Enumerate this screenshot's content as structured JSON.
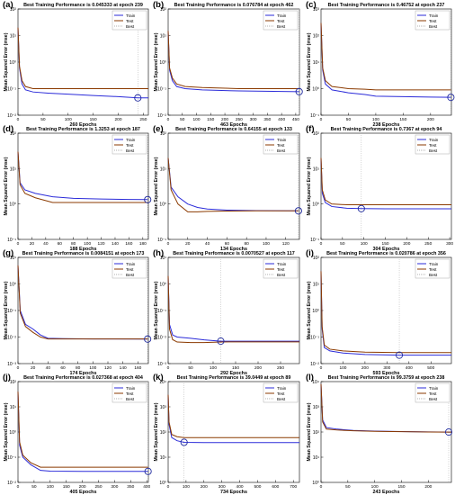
{
  "colors": {
    "train": "#2b2bd9",
    "test": "#8b3a00",
    "best": "#b0b0b0",
    "marker": "#1f2a9e",
    "axis": "#000000"
  },
  "legend_labels": [
    "Train",
    "Test",
    "Best"
  ],
  "ylabel": "Mean Squared Error  (mse)",
  "chart_data": [
    {
      "type": "line",
      "panel_label": "(a)",
      "title": "Best Training Performance is 0.045333 at epoch 239",
      "xlabel": "260 Epochs",
      "best_epoch": 239,
      "xlim": [
        0,
        260
      ],
      "xticks": [
        0,
        50,
        100,
        150,
        200,
        250
      ],
      "ylog": true,
      "ylim_exp": [
        -2,
        2
      ],
      "legend": "top-right",
      "series": [
        {
          "name": "Train",
          "x": [
            0,
            3,
            8,
            15,
            30,
            60,
            100,
            150,
            200,
            239,
            260
          ],
          "y": [
            20,
            0.6,
            0.15,
            0.09,
            0.075,
            0.068,
            0.062,
            0.055,
            0.05,
            0.045,
            0.045
          ]
        },
        {
          "name": "Test",
          "x": [
            0,
            3,
            8,
            15,
            30,
            60,
            100,
            150,
            200,
            239,
            260
          ],
          "y": [
            20,
            0.7,
            0.2,
            0.12,
            0.1,
            0.1,
            0.1,
            0.1,
            0.1,
            0.1,
            0.1
          ]
        }
      ]
    },
    {
      "type": "line",
      "panel_label": "(b)",
      "title": "Best Training Performance is 0.076784 at epoch 462",
      "xlabel": "463 Epochs",
      "best_epoch": 462,
      "xlim": [
        0,
        463
      ],
      "xticks": [
        0,
        50,
        100,
        150,
        200,
        250,
        300,
        350,
        400,
        450
      ],
      "ylog": true,
      "ylim_exp": [
        -2,
        2
      ],
      "legend": "top-right",
      "series": [
        {
          "name": "Train",
          "x": [
            0,
            5,
            15,
            30,
            60,
            120,
            250,
            400,
            462
          ],
          "y": [
            15,
            0.5,
            0.2,
            0.12,
            0.1,
            0.09,
            0.082,
            0.078,
            0.077
          ]
        },
        {
          "name": "Test",
          "x": [
            0,
            5,
            15,
            30,
            60,
            120,
            250,
            400,
            462
          ],
          "y": [
            15,
            0.6,
            0.25,
            0.15,
            0.12,
            0.11,
            0.1,
            0.1,
            0.1
          ]
        }
      ]
    },
    {
      "type": "line",
      "panel_label": "(c)",
      "title": "Best Training Performance is 0.46752 at epoch 237",
      "xlabel": "238 Epochs",
      "best_epoch": 237,
      "xlim": [
        0,
        238
      ],
      "xticks": [
        0,
        50,
        100,
        150,
        200
      ],
      "ylog": true,
      "ylim_exp": [
        -1,
        3
      ],
      "legend": "top-right",
      "series": [
        {
          "name": "Train",
          "x": [
            0,
            3,
            8,
            20,
            50,
            80,
            100,
            150,
            200,
            237
          ],
          "y": [
            300,
            5,
            1.5,
            0.9,
            0.7,
            0.6,
            0.52,
            0.5,
            0.48,
            0.47
          ]
        },
        {
          "name": "Test",
          "x": [
            0,
            3,
            8,
            20,
            50,
            80,
            100,
            150,
            200,
            237
          ],
          "y": [
            300,
            6,
            2,
            1.2,
            1,
            0.95,
            0.9,
            0.9,
            0.9,
            0.9
          ]
        }
      ]
    },
    {
      "type": "line",
      "panel_label": "(d)",
      "title": "Best Training Performance is 1.3253 at epoch 187",
      "xlabel": "188 Epochs",
      "best_epoch": 187,
      "xlim": [
        0,
        188
      ],
      "xticks": [
        0,
        20,
        40,
        60,
        80,
        100,
        120,
        140,
        160,
        180
      ],
      "ylog": true,
      "ylim_exp": [
        -1,
        2
      ],
      "legend": "top-right",
      "series": [
        {
          "name": "Train",
          "x": [
            0,
            3,
            10,
            25,
            50,
            80,
            120,
            160,
            187
          ],
          "y": [
            30,
            4,
            2.5,
            2,
            1.6,
            1.45,
            1.38,
            1.34,
            1.33
          ]
        },
        {
          "name": "Test",
          "x": [
            0,
            3,
            10,
            25,
            50,
            80,
            120,
            160,
            187
          ],
          "y": [
            30,
            3.5,
            2,
            1.5,
            1.1,
            1.1,
            1.1,
            1.1,
            1.1
          ]
        }
      ]
    },
    {
      "type": "line",
      "panel_label": "(e)",
      "title": "Best Training Performance is 0.64155 at epoch 133",
      "xlabel": "134 Epochs",
      "best_epoch": 133,
      "xlim": [
        0,
        134
      ],
      "xticks": [
        0,
        20,
        40,
        60,
        80,
        100,
        120
      ],
      "ylog": true,
      "ylim_exp": [
        -1,
        2
      ],
      "legend": "top-right",
      "series": [
        {
          "name": "Train",
          "x": [
            0,
            3,
            10,
            20,
            30,
            40,
            60,
            90,
            133
          ],
          "y": [
            20,
            3,
            1.6,
            1,
            0.8,
            0.72,
            0.67,
            0.65,
            0.64
          ]
        },
        {
          "name": "Test",
          "x": [
            0,
            3,
            10,
            20,
            30,
            40,
            60,
            90,
            133
          ],
          "y": [
            20,
            2.5,
            1,
            0.6,
            0.6,
            0.62,
            0.63,
            0.64,
            0.64
          ]
        }
      ]
    },
    {
      "type": "line",
      "panel_label": "(f)",
      "title": "Best Training Performance is 0.7367 at epoch 94",
      "xlabel": "304 Epochs",
      "best_epoch": 94,
      "xlim": [
        0,
        304
      ],
      "xticks": [
        0,
        50,
        100,
        150,
        200,
        250,
        300
      ],
      "ylog": true,
      "ylim_exp": [
        -1,
        2
      ],
      "legend": "top-right",
      "series": [
        {
          "name": "Train",
          "x": [
            0,
            3,
            10,
            25,
            60,
            94,
            150,
            200,
            250,
            304
          ],
          "y": [
            20,
            2,
            1.1,
            0.85,
            0.76,
            0.74,
            0.73,
            0.73,
            0.73,
            0.73
          ]
        },
        {
          "name": "Test",
          "x": [
            0,
            3,
            10,
            25,
            60,
            94,
            150,
            200,
            250,
            304
          ],
          "y": [
            20,
            2.5,
            1.3,
            1,
            0.95,
            0.95,
            0.95,
            0.95,
            0.95,
            0.95
          ]
        }
      ]
    },
    {
      "type": "line",
      "panel_label": "(g)",
      "title": "Best Training Performance is 0.0084151 at epoch 173",
      "xlabel": "174 Epochs",
      "best_epoch": 173,
      "xlim": [
        0,
        174
      ],
      "xticks": [
        0,
        20,
        40,
        60,
        80,
        100,
        120,
        140,
        160
      ],
      "ylog": true,
      "ylim_exp": [
        -3,
        1
      ],
      "legend": "top-right",
      "series": [
        {
          "name": "Train",
          "x": [
            0,
            3,
            10,
            20,
            30,
            40,
            60,
            100,
            173
          ],
          "y": [
            5,
            0.1,
            0.03,
            0.02,
            0.012,
            0.009,
            0.0087,
            0.0085,
            0.0084
          ]
        },
        {
          "name": "Test",
          "x": [
            0,
            3,
            10,
            20,
            30,
            40,
            60,
            100,
            173
          ],
          "y": [
            5,
            0.08,
            0.025,
            0.015,
            0.01,
            0.0085,
            0.0085,
            0.0085,
            0.0085
          ]
        }
      ]
    },
    {
      "type": "line",
      "panel_label": "(h)",
      "title": "Best Training Performance is 0.0070527 at epoch 117",
      "xlabel": "292 Epochs",
      "best_epoch": 117,
      "xlim": [
        0,
        292
      ],
      "xticks": [
        0,
        50,
        100,
        150,
        200,
        250
      ],
      "ylog": true,
      "ylim_exp": [
        -3,
        1
      ],
      "legend": "top-right",
      "series": [
        {
          "name": "Train",
          "x": [
            0,
            3,
            10,
            20,
            50,
            80,
            117,
            150,
            200,
            292
          ],
          "y": [
            2,
            0.03,
            0.012,
            0.01,
            0.009,
            0.0078,
            0.007,
            0.007,
            0.007,
            0.007
          ]
        },
        {
          "name": "Test",
          "x": [
            0,
            3,
            10,
            20,
            50,
            80,
            117,
            150,
            200,
            292
          ],
          "y": [
            2,
            0.02,
            0.008,
            0.0065,
            0.0062,
            0.0062,
            0.0065,
            0.0066,
            0.0066,
            0.0066
          ]
        }
      ]
    },
    {
      "type": "line",
      "panel_label": "(i)",
      "title": "Best Training Performance is 0.020786 at epoch 356",
      "xlabel": "593 Epochs",
      "best_epoch": 356,
      "xlim": [
        0,
        593
      ],
      "xticks": [
        0,
        100,
        200,
        300,
        400,
        500
      ],
      "ylog": true,
      "ylim_exp": [
        -2,
        2
      ],
      "legend": "top-right",
      "series": [
        {
          "name": "Train",
          "x": [
            0,
            5,
            15,
            40,
            100,
            200,
            356,
            450,
            593
          ],
          "y": [
            30,
            0.2,
            0.04,
            0.03,
            0.025,
            0.022,
            0.0208,
            0.0208,
            0.0208
          ]
        },
        {
          "name": "Test",
          "x": [
            0,
            5,
            15,
            40,
            100,
            200,
            356,
            450,
            593
          ],
          "y": [
            30,
            0.25,
            0.05,
            0.035,
            0.03,
            0.027,
            0.026,
            0.026,
            0.026
          ]
        }
      ]
    },
    {
      "type": "line",
      "panel_label": "(j)",
      "title": "Best Training Performance is 0.027368 at epoch 404",
      "xlabel": "405 Epochs",
      "best_epoch": 404,
      "xlim": [
        0,
        405
      ],
      "xticks": [
        0,
        50,
        100,
        150,
        200,
        250,
        300,
        350,
        400
      ],
      "ylog": true,
      "ylim_exp": [
        -2,
        2
      ],
      "legend": "top-right",
      "series": [
        {
          "name": "Train",
          "x": [
            0,
            5,
            15,
            40,
            70,
            100,
            200,
            300,
            404
          ],
          "y": [
            40,
            0.3,
            0.1,
            0.05,
            0.03,
            0.028,
            0.0275,
            0.0274,
            0.0274
          ]
        },
        {
          "name": "Test",
          "x": [
            0,
            5,
            15,
            40,
            70,
            100,
            200,
            300,
            404
          ],
          "y": [
            40,
            0.4,
            0.12,
            0.06,
            0.04,
            0.04,
            0.04,
            0.04,
            0.04
          ]
        }
      ]
    },
    {
      "type": "line",
      "panel_label": "(k)",
      "title": "Best Training Performance is 39.0449 at epoch 89",
      "xlabel": "734 Epochs",
      "best_epoch": 89,
      "xlim": [
        0,
        734
      ],
      "xticks": [
        0,
        100,
        200,
        300,
        400,
        500,
        600,
        700
      ],
      "ylog": true,
      "ylim_exp": [
        0,
        4
      ],
      "legend": "top-right",
      "series": [
        {
          "name": "Train",
          "x": [
            0,
            5,
            20,
            50,
            89,
            200,
            400,
            600,
            734
          ],
          "y": [
            3000,
            200,
            60,
            45,
            39,
            38,
            38,
            38,
            38
          ]
        },
        {
          "name": "Test",
          "x": [
            0,
            5,
            20,
            50,
            89,
            200,
            400,
            600,
            734
          ],
          "y": [
            3000,
            250,
            80,
            65,
            60,
            60,
            60,
            60,
            60
          ]
        }
      ]
    },
    {
      "type": "line",
      "panel_label": "(l)",
      "title": "Best Training Performance is 99.3759 at epoch 238",
      "xlabel": "243 Epochs",
      "best_epoch": 238,
      "xlim": [
        0,
        243
      ],
      "xticks": [
        0,
        50,
        100,
        150,
        200
      ],
      "ylog": true,
      "ylim_exp": [
        0,
        4
      ],
      "legend": "top-right",
      "series": [
        {
          "name": "Train",
          "x": [
            0,
            3,
            10,
            30,
            60,
            100,
            150,
            200,
            238,
            243
          ],
          "y": [
            8000,
            300,
            150,
            130,
            115,
            108,
            104,
            101,
            99.4,
            99.4
          ]
        },
        {
          "name": "Test",
          "x": [
            0,
            3,
            10,
            30,
            60,
            100,
            150,
            200,
            238,
            243
          ],
          "y": [
            8000,
            250,
            130,
            120,
            112,
            106,
            103,
            100,
            99,
            99
          ]
        }
      ]
    }
  ]
}
